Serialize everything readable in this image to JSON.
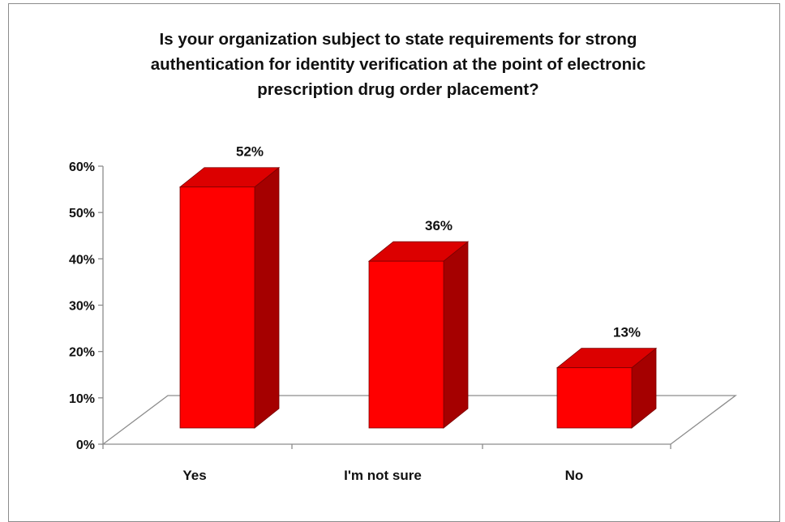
{
  "chart_data": {
    "type": "bar",
    "title": "Is your organization subject to state requirements for strong\nauthentication for identity verification at the point of electronic\nprescription drug order placement?",
    "categories": [
      "Yes",
      "I'm not sure",
      "No"
    ],
    "values": [
      52,
      36,
      13
    ],
    "data_labels": [
      "52%",
      "36%",
      "13%"
    ],
    "y_ticks": [
      "0%",
      "10%",
      "20%",
      "30%",
      "40%",
      "50%",
      "60%"
    ],
    "ylim": [
      0,
      60
    ],
    "xlabel": "",
    "ylabel": "",
    "grid": false,
    "legend": "none",
    "style": "3d-column",
    "colors": {
      "bar_front": "#ff0000",
      "bar_side": "#a50000",
      "bar_top": "#dc0000",
      "bar_edge": "#7a0000",
      "axis": "#8c8c8c",
      "text": "#111111"
    }
  }
}
